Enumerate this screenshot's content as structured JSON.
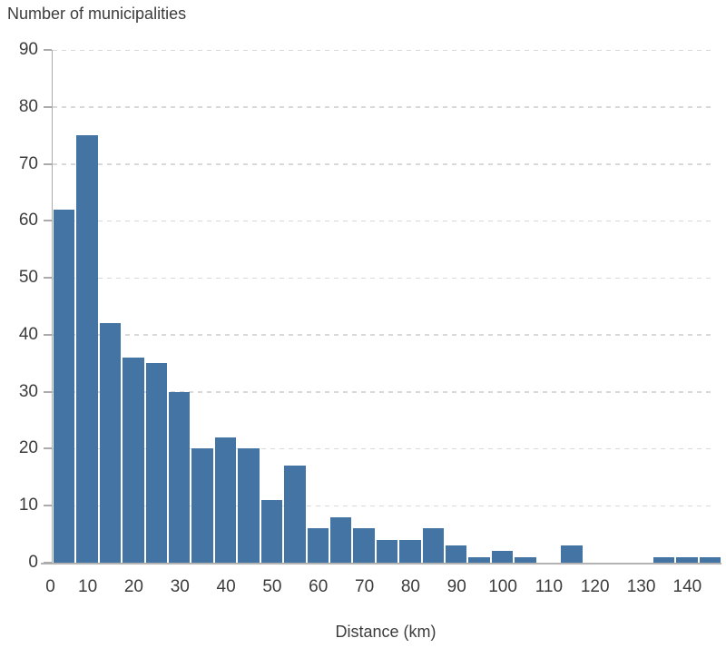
{
  "chart_data": {
    "type": "bar",
    "subtype": "histogram",
    "title": "Number of municipalities",
    "xlabel": "Distance (km)",
    "ylabel": "Number of municipalities",
    "bin_width_km": 5,
    "bin_edges": [
      0,
      5,
      10,
      15,
      20,
      25,
      30,
      35,
      40,
      45,
      50,
      55,
      60,
      65,
      70,
      75,
      80,
      85,
      90,
      95,
      100,
      105,
      110,
      115,
      120,
      125,
      130,
      135,
      140,
      145
    ],
    "values": [
      62,
      75,
      42,
      36,
      35,
      30,
      20,
      22,
      20,
      11,
      17,
      6,
      8,
      6,
      4,
      4,
      6,
      3,
      1,
      2,
      1,
      0,
      3,
      0,
      0,
      0,
      1,
      1,
      1
    ],
    "x_ticks": [
      0,
      10,
      20,
      30,
      40,
      50,
      60,
      70,
      80,
      90,
      100,
      110,
      120,
      130,
      140
    ],
    "x_tick_labels": [
      "0",
      "10",
      "20",
      "30",
      "40",
      "50",
      "60",
      "70",
      "80",
      "90",
      "100",
      "110",
      "120",
      "130",
      "140"
    ],
    "y_ticks": [
      0,
      10,
      20,
      30,
      40,
      50,
      60,
      70,
      80,
      90
    ],
    "y_tick_labels": [
      "0",
      "10",
      "20",
      "30",
      "40",
      "50",
      "60",
      "70",
      "80",
      "90"
    ],
    "ylim": [
      0,
      90
    ],
    "xlim_km": [
      0,
      145
    ],
    "grid": "horizontal-dashed",
    "legend": "none",
    "colors": {
      "bar": "#4474a4",
      "axis": "#ababab",
      "grid": "#d9d9d9",
      "text": "#3c3c3c"
    }
  }
}
